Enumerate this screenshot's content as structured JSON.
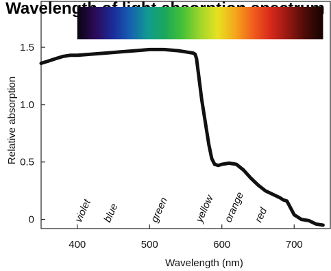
{
  "chart_data": {
    "type": "line",
    "title": "Wavelength of light absorption spectrum",
    "xlabel": "Wavelength (nm)",
    "ylabel": "Relative absorption",
    "xlim": [
      350,
      750
    ],
    "ylim": [
      -0.08,
      1.9
    ],
    "x_ticks": [
      400,
      500,
      600,
      700
    ],
    "y_ticks": [
      0,
      0.5,
      1.0,
      1.5
    ],
    "y_tick_labels": [
      "0",
      "0.5",
      "1.0",
      "1.5"
    ],
    "grid": false,
    "legend": "none",
    "series": [
      {
        "color": "#111111",
        "x": [
          350,
          360,
          370,
          380,
          390,
          400,
          420,
          440,
          460,
          480,
          500,
          520,
          540,
          550,
          560,
          563,
          565,
          568,
          572,
          577,
          582,
          586,
          590,
          595,
          600,
          610,
          620,
          630,
          640,
          650,
          660,
          670,
          680,
          685,
          690,
          695,
          700,
          705,
          710,
          720,
          730,
          740
        ],
        "y": [
          1.36,
          1.38,
          1.4,
          1.42,
          1.43,
          1.43,
          1.44,
          1.45,
          1.46,
          1.47,
          1.48,
          1.48,
          1.47,
          1.46,
          1.45,
          1.44,
          1.4,
          1.25,
          1.05,
          0.85,
          0.65,
          0.53,
          0.48,
          0.47,
          0.48,
          0.49,
          0.48,
          0.43,
          0.36,
          0.3,
          0.25,
          0.22,
          0.19,
          0.17,
          0.16,
          0.1,
          0.04,
          0.02,
          0.0,
          -0.01,
          -0.04,
          -0.05
        ]
      }
    ],
    "spectrum_bar": {
      "x_range": [
        400,
        740
      ],
      "y_range": [
        1.57,
        1.92
      ],
      "colors": [
        "#0a0410",
        "#2b0a58",
        "#1a2a9a",
        "#1560b0",
        "#119a90",
        "#1aa858",
        "#48c035",
        "#a0d52a",
        "#e8e020",
        "#f6a51c",
        "#f25e1e",
        "#d8291c",
        "#941812",
        "#4a0c08",
        "#140402"
      ]
    },
    "annotations": [
      {
        "text": "violet",
        "x": 405
      },
      {
        "text": "blue",
        "x": 445
      },
      {
        "text": "green",
        "x": 510
      },
      {
        "text": "yellow",
        "x": 572
      },
      {
        "text": "orange",
        "x": 612
      },
      {
        "text": "red",
        "x": 654
      }
    ]
  }
}
